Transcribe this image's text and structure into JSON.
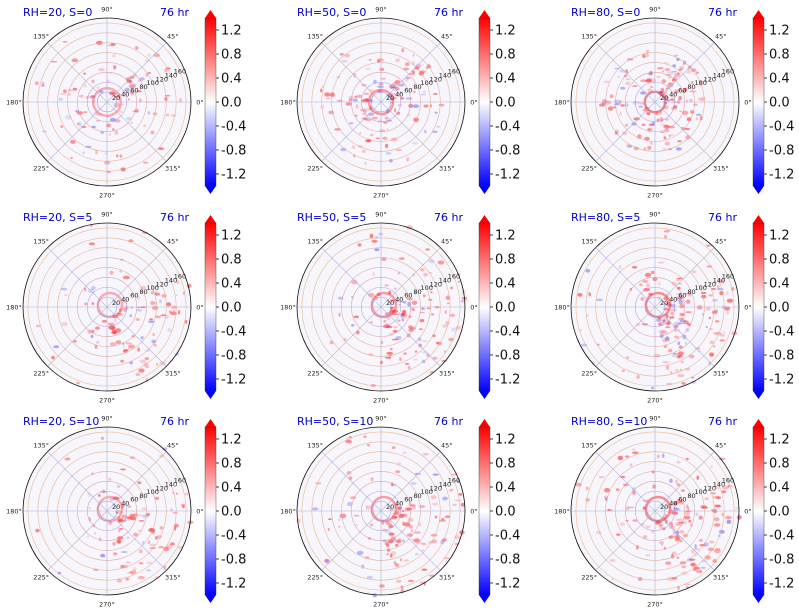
{
  "chart_data": {
    "type": "polar-contour",
    "time_label": "76 hr",
    "radial_ticks": [
      20,
      40,
      60,
      80,
      100,
      120,
      140,
      160
    ],
    "angle_labels": [
      "0°",
      "45°",
      "90°",
      "135°",
      "180°",
      "225°",
      "270°",
      "315°"
    ],
    "colorbar": {
      "ticks": [
        "1.2",
        "0.8",
        "0.4",
        "0.0",
        "-0.4",
        "-0.8",
        "-1.2"
      ],
      "vmin": -1.4,
      "vmax": 1.4,
      "colormap": "bwr"
    },
    "panels": [
      {
        "title": "RH=20, S=0",
        "rh": 20,
        "s": 0
      },
      {
        "title": "RH=50, S=0",
        "rh": 50,
        "s": 0
      },
      {
        "title": "RH=80, S=0",
        "rh": 80,
        "s": 0
      },
      {
        "title": "RH=20, S=5",
        "rh": 20,
        "s": 5
      },
      {
        "title": "RH=50, S=5",
        "rh": 50,
        "s": 5
      },
      {
        "title": "RH=80, S=5",
        "rh": 80,
        "s": 5
      },
      {
        "title": "RH=20, S=10",
        "rh": 20,
        "s": 10
      },
      {
        "title": "RH=50, S=10",
        "rh": 50,
        "s": 10
      },
      {
        "title": "RH=80, S=10",
        "rh": 80,
        "s": 10
      }
    ]
  }
}
